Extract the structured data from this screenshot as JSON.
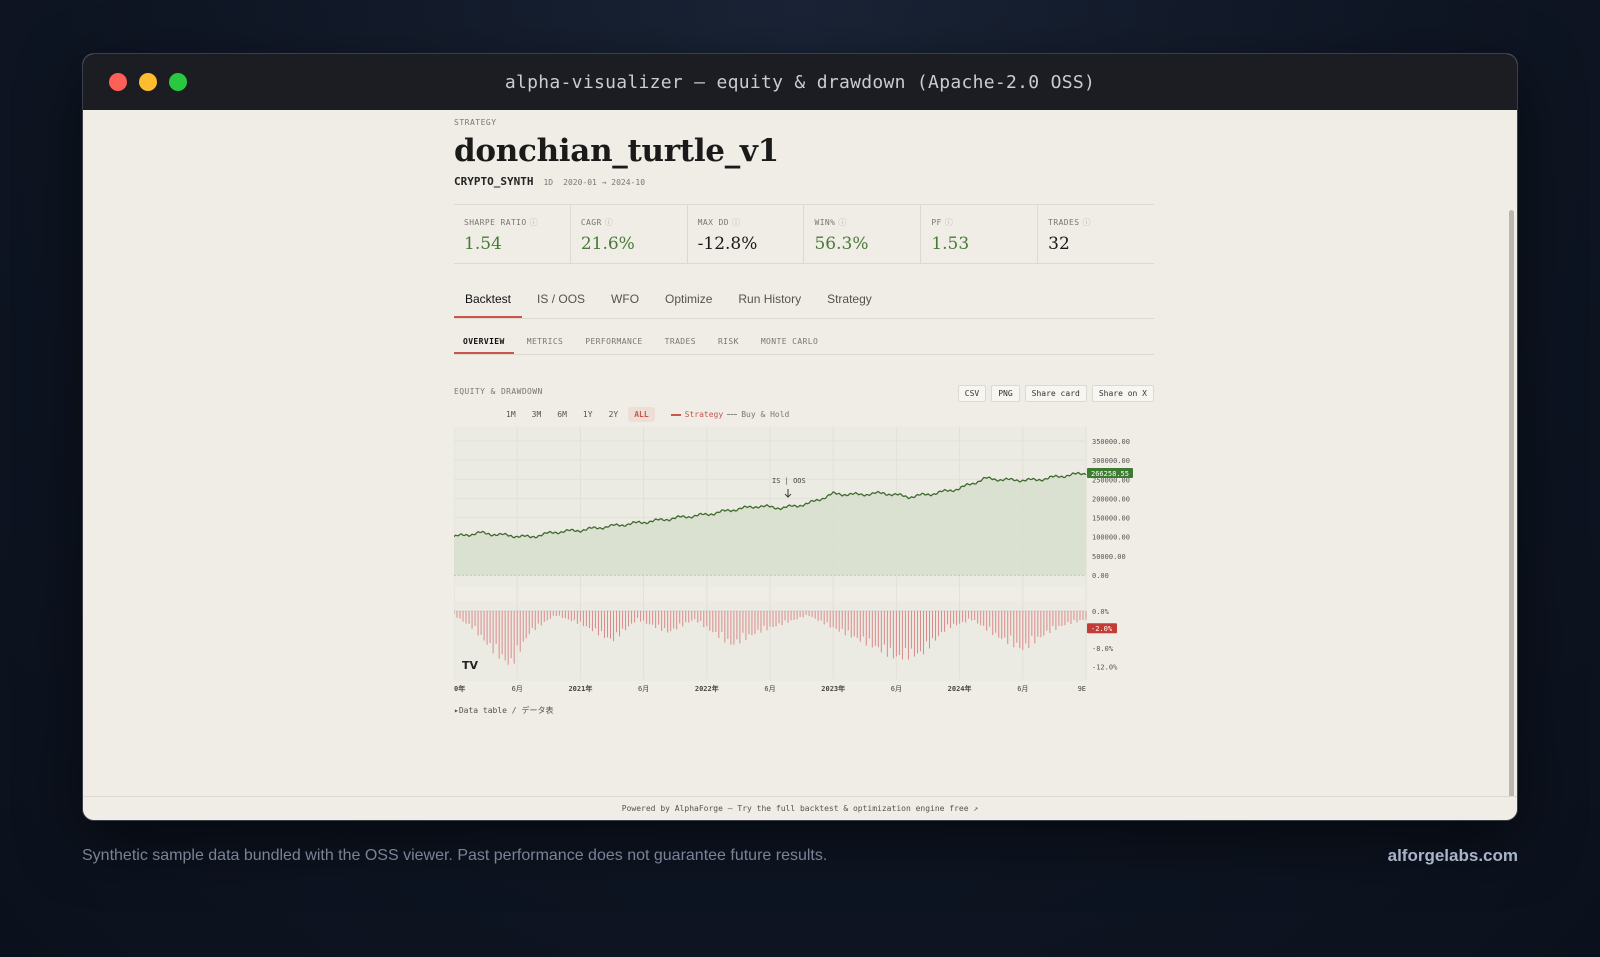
{
  "window": {
    "title": "alpha-visualizer — equity & drawdown (Apache-2.0 OSS)"
  },
  "header": {
    "eyebrow": "STRATEGY",
    "strategy_name": "donchian_turtle_v1",
    "symbol": "CRYPTO_SYNTH",
    "timeframe": "1D",
    "date_range": "2020-01 → 2024-10"
  },
  "kpis": [
    {
      "label": "SHARPE RATIO",
      "value": "1.54",
      "tone": "positive"
    },
    {
      "label": "CAGR",
      "value": "21.6%",
      "tone": "positive"
    },
    {
      "label": "MAX DD",
      "value": "-12.8%",
      "tone": "neutral"
    },
    {
      "label": "WIN%",
      "value": "56.3%",
      "tone": "positive"
    },
    {
      "label": "PF",
      "value": "1.53",
      "tone": "positive"
    },
    {
      "label": "TRADES",
      "value": "32",
      "tone": "neutral"
    }
  ],
  "info_glyph": "ⓘ",
  "tabs": [
    "Backtest",
    "IS / OOS",
    "WFO",
    "Optimize",
    "Run History",
    "Strategy"
  ],
  "subtabs": [
    "OVERVIEW",
    "METRICS",
    "PERFORMANCE",
    "TRADES",
    "RISK",
    "MONTE CARLO"
  ],
  "chart_section": {
    "label": "EQUITY & DRAWDOWN",
    "actions": [
      "CSV",
      "PNG",
      "Share card",
      "Share on X"
    ],
    "ranges": [
      "1M",
      "3M",
      "6M",
      "1Y",
      "2Y",
      "ALL"
    ],
    "active_range": "ALL",
    "legend": {
      "strategy": "Strategy",
      "buy_hold": "Buy & Hold"
    },
    "split_marker": "IS | OOS",
    "logo": "TV",
    "data_table_toggle": "Data table / データ表"
  },
  "chart_data": {
    "type": "area",
    "x_ticks": [
      "0年",
      "6月",
      "2021年",
      "6月",
      "2022年",
      "6月",
      "2023年",
      "6月",
      "2024年",
      "6月",
      "9E"
    ],
    "equity": {
      "series_name": "Strategy",
      "y_ticks": [
        "350000.00",
        "300000.00",
        "250000.00",
        "200000.00",
        "150000.00",
        "100000.00",
        "50000.00",
        "0.00"
      ],
      "ylim": [
        0,
        350000
      ],
      "last_value_label": "266258.55",
      "points": [
        {
          "t": 0,
          "v": 100000
        },
        {
          "t": 0.04,
          "v": 110000
        },
        {
          "t": 0.08,
          "v": 104000
        },
        {
          "t": 0.12,
          "v": 99000
        },
        {
          "t": 0.16,
          "v": 112000
        },
        {
          "t": 0.2,
          "v": 117000
        },
        {
          "t": 0.24,
          "v": 126000
        },
        {
          "t": 0.28,
          "v": 134000
        },
        {
          "t": 0.32,
          "v": 142000
        },
        {
          "t": 0.36,
          "v": 151000
        },
        {
          "t": 0.4,
          "v": 158000
        },
        {
          "t": 0.44,
          "v": 170000
        },
        {
          "t": 0.48,
          "v": 180000
        },
        {
          "t": 0.52,
          "v": 175000
        },
        {
          "t": 0.56,
          "v": 186000
        },
        {
          "t": 0.6,
          "v": 212000
        },
        {
          "t": 0.64,
          "v": 210000
        },
        {
          "t": 0.68,
          "v": 214000
        },
        {
          "t": 0.72,
          "v": 204000
        },
        {
          "t": 0.76,
          "v": 213000
        },
        {
          "t": 0.8,
          "v": 226000
        },
        {
          "t": 0.84,
          "v": 252000
        },
        {
          "t": 0.88,
          "v": 248000
        },
        {
          "t": 0.92,
          "v": 248000
        },
        {
          "t": 0.96,
          "v": 258000
        },
        {
          "t": 1.0,
          "v": 266258.55
        }
      ]
    },
    "drawdown": {
      "y_ticks": [
        "0.0%",
        "-4.0%",
        "-8.0%",
        "-12.0%"
      ],
      "ylim": [
        -13,
        0
      ],
      "last_value_label": "-2.0%",
      "points": [
        {
          "t": 0.0,
          "v": -1
        },
        {
          "t": 0.03,
          "v": -4
        },
        {
          "t": 0.06,
          "v": -9
        },
        {
          "t": 0.09,
          "v": -12.8
        },
        {
          "t": 0.12,
          "v": -5
        },
        {
          "t": 0.16,
          "v": -1
        },
        {
          "t": 0.2,
          "v": -3
        },
        {
          "t": 0.25,
          "v": -7
        },
        {
          "t": 0.29,
          "v": -2
        },
        {
          "t": 0.34,
          "v": -5
        },
        {
          "t": 0.38,
          "v": -2
        },
        {
          "t": 0.44,
          "v": -8
        },
        {
          "t": 0.48,
          "v": -5
        },
        {
          "t": 0.52,
          "v": -3
        },
        {
          "t": 0.56,
          "v": -1
        },
        {
          "t": 0.6,
          "v": -4
        },
        {
          "t": 0.66,
          "v": -8
        },
        {
          "t": 0.7,
          "v": -11
        },
        {
          "t": 0.74,
          "v": -10
        },
        {
          "t": 0.78,
          "v": -4
        },
        {
          "t": 0.82,
          "v": -2
        },
        {
          "t": 0.86,
          "v": -6
        },
        {
          "t": 0.9,
          "v": -9
        },
        {
          "t": 0.94,
          "v": -5
        },
        {
          "t": 0.97,
          "v": -3
        },
        {
          "t": 1.0,
          "v": -2
        }
      ]
    },
    "split_t": 0.5
  },
  "footer": {
    "text": "Powered by AlphaForge — Try the full backtest & optimization engine free ↗"
  },
  "page_footer": {
    "disclaimer": "Synthetic sample data bundled with the OSS viewer. Past performance does not guarantee future results.",
    "brand": "alforgelabs.com"
  },
  "colors": {
    "accent": "#c9564a",
    "equity_line": "#3f6b2e",
    "equity_fill": "#d7dfcc",
    "drawdown": "#d98a8a",
    "last_equity_badge": "#3d7a32",
    "last_dd_badge": "#c23b35"
  }
}
